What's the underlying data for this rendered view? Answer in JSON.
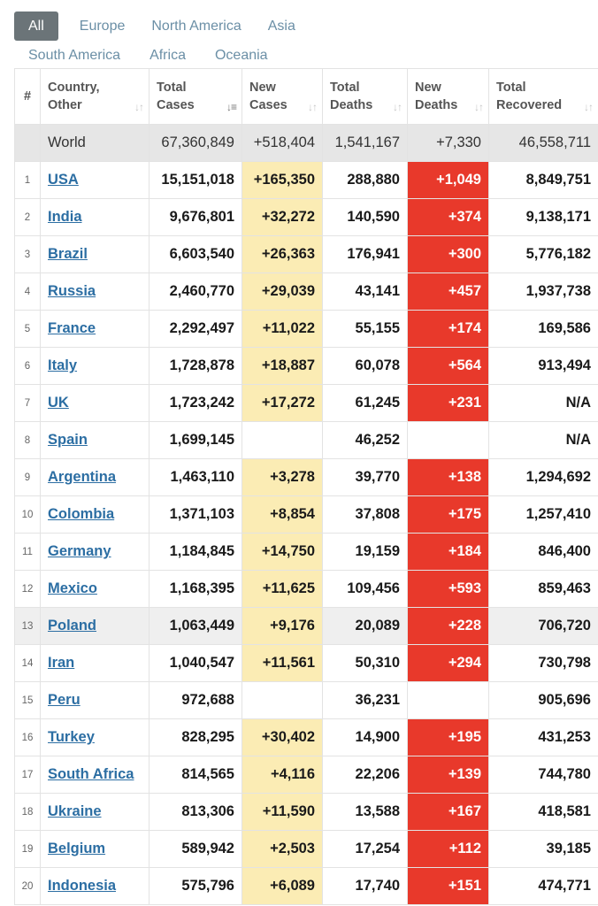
{
  "tabs": {
    "row1": [
      "All",
      "Europe",
      "North America",
      "Asia"
    ],
    "row2": [
      "South America",
      "Africa",
      "Oceania"
    ],
    "active": "All"
  },
  "columns": [
    {
      "key": "num",
      "label": "#"
    },
    {
      "key": "country",
      "line1": "Country,",
      "line2": "Other"
    },
    {
      "key": "total_cases",
      "line1": "Total",
      "line2": "Cases"
    },
    {
      "key": "new_cases",
      "line1": "New",
      "line2": "Cases"
    },
    {
      "key": "total_deaths",
      "line1": "Total",
      "line2": "Deaths"
    },
    {
      "key": "new_deaths",
      "line1": "New",
      "line2": "Deaths"
    },
    {
      "key": "total_recovered",
      "line1": "Total",
      "line2": "Recovered"
    }
  ],
  "world": {
    "label": "World",
    "total_cases": "67,360,849",
    "new_cases": "+518,404",
    "total_deaths": "1,541,167",
    "new_deaths": "+7,330",
    "total_recovered": "46,558,711"
  },
  "rows": [
    {
      "num": "1",
      "country": "USA",
      "total_cases": "15,151,018",
      "new_cases": "+165,350",
      "total_deaths": "288,880",
      "new_deaths": "+1,049",
      "total_recovered": "8,849,751"
    },
    {
      "num": "2",
      "country": "India",
      "total_cases": "9,676,801",
      "new_cases": "+32,272",
      "total_deaths": "140,590",
      "new_deaths": "+374",
      "total_recovered": "9,138,171"
    },
    {
      "num": "3",
      "country": "Brazil",
      "total_cases": "6,603,540",
      "new_cases": "+26,363",
      "total_deaths": "176,941",
      "new_deaths": "+300",
      "total_recovered": "5,776,182"
    },
    {
      "num": "4",
      "country": "Russia",
      "total_cases": "2,460,770",
      "new_cases": "+29,039",
      "total_deaths": "43,141",
      "new_deaths": "+457",
      "total_recovered": "1,937,738"
    },
    {
      "num": "5",
      "country": "France",
      "total_cases": "2,292,497",
      "new_cases": "+11,022",
      "total_deaths": "55,155",
      "new_deaths": "+174",
      "total_recovered": "169,586"
    },
    {
      "num": "6",
      "country": "Italy",
      "total_cases": "1,728,878",
      "new_cases": "+18,887",
      "total_deaths": "60,078",
      "new_deaths": "+564",
      "total_recovered": "913,494"
    },
    {
      "num": "7",
      "country": "UK",
      "total_cases": "1,723,242",
      "new_cases": "+17,272",
      "total_deaths": "61,245",
      "new_deaths": "+231",
      "total_recovered": "N/A"
    },
    {
      "num": "8",
      "country": "Spain",
      "total_cases": "1,699,145",
      "new_cases": "",
      "total_deaths": "46,252",
      "new_deaths": "",
      "total_recovered": "N/A"
    },
    {
      "num": "9",
      "country": "Argentina",
      "total_cases": "1,463,110",
      "new_cases": "+3,278",
      "total_deaths": "39,770",
      "new_deaths": "+138",
      "total_recovered": "1,294,692"
    },
    {
      "num": "10",
      "country": "Colombia",
      "total_cases": "1,371,103",
      "new_cases": "+8,854",
      "total_deaths": "37,808",
      "new_deaths": "+175",
      "total_recovered": "1,257,410"
    },
    {
      "num": "11",
      "country": "Germany",
      "total_cases": "1,184,845",
      "new_cases": "+14,750",
      "total_deaths": "19,159",
      "new_deaths": "+184",
      "total_recovered": "846,400"
    },
    {
      "num": "12",
      "country": "Mexico",
      "total_cases": "1,168,395",
      "new_cases": "+11,625",
      "total_deaths": "109,456",
      "new_deaths": "+593",
      "total_recovered": "859,463"
    },
    {
      "num": "13",
      "country": "Poland",
      "total_cases": "1,063,449",
      "new_cases": "+9,176",
      "total_deaths": "20,089",
      "new_deaths": "+228",
      "total_recovered": "706,720",
      "highlighted": true
    },
    {
      "num": "14",
      "country": "Iran",
      "total_cases": "1,040,547",
      "new_cases": "+11,561",
      "total_deaths": "50,310",
      "new_deaths": "+294",
      "total_recovered": "730,798"
    },
    {
      "num": "15",
      "country": "Peru",
      "total_cases": "972,688",
      "new_cases": "",
      "total_deaths": "36,231",
      "new_deaths": "",
      "total_recovered": "905,696"
    },
    {
      "num": "16",
      "country": "Turkey",
      "total_cases": "828,295",
      "new_cases": "+30,402",
      "total_deaths": "14,900",
      "new_deaths": "+195",
      "total_recovered": "431,253"
    },
    {
      "num": "17",
      "country": "South Africa",
      "total_cases": "814,565",
      "new_cases": "+4,116",
      "total_deaths": "22,206",
      "new_deaths": "+139",
      "total_recovered": "744,780"
    },
    {
      "num": "18",
      "country": "Ukraine",
      "total_cases": "813,306",
      "new_cases": "+11,590",
      "total_deaths": "13,588",
      "new_deaths": "+167",
      "total_recovered": "418,581"
    },
    {
      "num": "19",
      "country": "Belgium",
      "total_cases": "589,942",
      "new_cases": "+2,503",
      "total_deaths": "17,254",
      "new_deaths": "+112",
      "total_recovered": "39,185"
    },
    {
      "num": "20",
      "country": "Indonesia",
      "total_cases": "575,796",
      "new_cases": "+6,089",
      "total_deaths": "17,740",
      "new_deaths": "+151",
      "total_recovered": "474,771"
    }
  ],
  "colors": {
    "new_cases_bg": "#fbecb4",
    "new_deaths_bg": "#e8392b",
    "world_row_bg": "#e6e6e6",
    "link": "#2c6ea3",
    "tab_active_bg": "#6b7478",
    "tab_text": "#6b8fa6"
  },
  "icons": {
    "sort": "sort-arrows-icon",
    "sort_active": "sort-descending-icon"
  }
}
